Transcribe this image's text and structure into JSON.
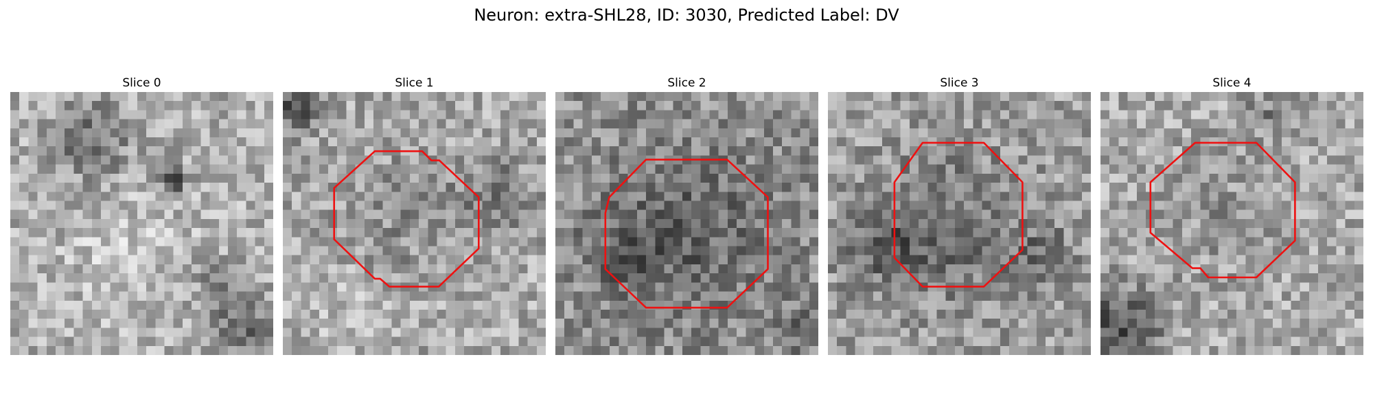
{
  "figure": {
    "title": "Neuron: extra-SHL28, ID: 3030, Predicted Label: DV"
  },
  "panels": [
    {
      "title": "Slice 0",
      "contour": null,
      "tone": {
        "base": 176,
        "seed": 11,
        "blobs": [
          [
            0.3,
            0.18,
            0.14,
            -70
          ],
          [
            0.62,
            0.33,
            0.05,
            -115
          ],
          [
            0.88,
            0.88,
            0.12,
            -70
          ],
          [
            0.8,
            0.72,
            0.08,
            -55
          ],
          [
            0.45,
            0.6,
            0.2,
            25
          ]
        ]
      }
    },
    {
      "title": "Slice 1",
      "contour": [
        [
          0.35,
          0.225
        ],
        [
          0.53,
          0.225
        ],
        [
          0.565,
          0.26
        ],
        [
          0.595,
          0.26
        ],
        [
          0.745,
          0.4
        ],
        [
          0.745,
          0.595
        ],
        [
          0.593,
          0.74
        ],
        [
          0.405,
          0.74
        ],
        [
          0.37,
          0.71
        ],
        [
          0.35,
          0.71
        ],
        [
          0.195,
          0.56
        ],
        [
          0.195,
          0.365
        ]
      ],
      "tone": {
        "base": 170,
        "seed": 23,
        "blobs": [
          [
            0.47,
            0.47,
            0.25,
            -25
          ],
          [
            0.05,
            0.05,
            0.1,
            -80
          ],
          [
            0.82,
            0.4,
            0.14,
            -50
          ],
          [
            0.2,
            0.85,
            0.18,
            20
          ]
        ]
      }
    },
    {
      "title": "Slice 2",
      "contour": [
        [
          0.415,
          0.257
        ],
        [
          0.653,
          0.257
        ],
        [
          0.808,
          0.4
        ],
        [
          0.808,
          0.673
        ],
        [
          0.653,
          0.82
        ],
        [
          0.345,
          0.82
        ],
        [
          0.19,
          0.673
        ],
        [
          0.19,
          0.46
        ],
        [
          0.205,
          0.4
        ],
        [
          0.345,
          0.257
        ]
      ],
      "tone": {
        "base": 145,
        "seed": 37,
        "blobs": [
          [
            0.5,
            0.55,
            0.3,
            -45
          ],
          [
            0.25,
            0.6,
            0.15,
            -35
          ],
          [
            0.95,
            0.9,
            0.1,
            -30
          ]
        ]
      }
    },
    {
      "title": "Slice 3",
      "contour": [
        [
          0.36,
          0.193
        ],
        [
          0.593,
          0.193
        ],
        [
          0.74,
          0.343
        ],
        [
          0.74,
          0.6
        ],
        [
          0.593,
          0.74
        ],
        [
          0.36,
          0.74
        ],
        [
          0.253,
          0.63
        ],
        [
          0.253,
          0.343
        ],
        [
          0.36,
          0.193
        ]
      ],
      "tone": {
        "base": 160,
        "seed": 53,
        "blobs": [
          [
            0.45,
            0.52,
            0.28,
            -50
          ],
          [
            0.2,
            0.58,
            0.14,
            -55
          ],
          [
            0.82,
            0.62,
            0.12,
            -45
          ]
        ]
      }
    },
    {
      "title": "Slice 4",
      "contour": [
        [
          0.36,
          0.193
        ],
        [
          0.593,
          0.193
        ],
        [
          0.74,
          0.343
        ],
        [
          0.74,
          0.565
        ],
        [
          0.593,
          0.705
        ],
        [
          0.41,
          0.705
        ],
        [
          0.38,
          0.67
        ],
        [
          0.35,
          0.67
        ],
        [
          0.19,
          0.535
        ],
        [
          0.19,
          0.343
        ]
      ],
      "tone": {
        "base": 172,
        "seed": 71,
        "blobs": [
          [
            0.46,
            0.46,
            0.26,
            -22
          ],
          [
            0.08,
            0.9,
            0.15,
            -100
          ],
          [
            0.65,
            0.08,
            0.1,
            -40
          ]
        ]
      }
    }
  ]
}
